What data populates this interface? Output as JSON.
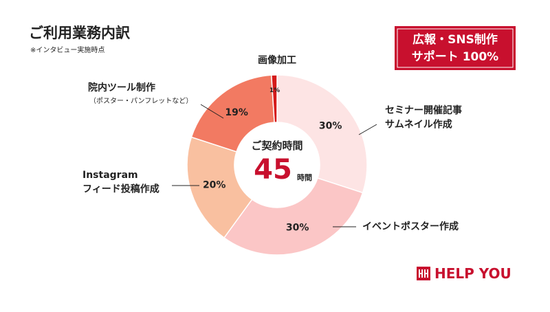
{
  "title": "ご利用業務内訳",
  "subtitle": "※インタビュー実施時点",
  "badge": {
    "lines": [
      "広報・SNS制作",
      "サポート 100%"
    ]
  },
  "logo": "HELP YOU",
  "chart_data": {
    "type": "donut",
    "categories": [
      "セミナー開催記事\nサムネイル作成",
      "イベントポスター作成",
      "Instagram\nフィード投稿作成",
      "院内ツール制作",
      "画像加工"
    ],
    "category_notes": [
      null,
      null,
      null,
      "（ポスター・パンフレットなど）",
      null
    ],
    "values": [
      30,
      30,
      20,
      19,
      1
    ],
    "value_labels": [
      "30%",
      "30%",
      "20%",
      "19%",
      "1%"
    ],
    "colors": [
      "#fde4e4",
      "#fbc6c6",
      "#f9c0a0",
      "#f27a62",
      "#d51b1b"
    ],
    "center_label": "ご契約時間",
    "center_value": 45,
    "center_unit": "時間"
  }
}
